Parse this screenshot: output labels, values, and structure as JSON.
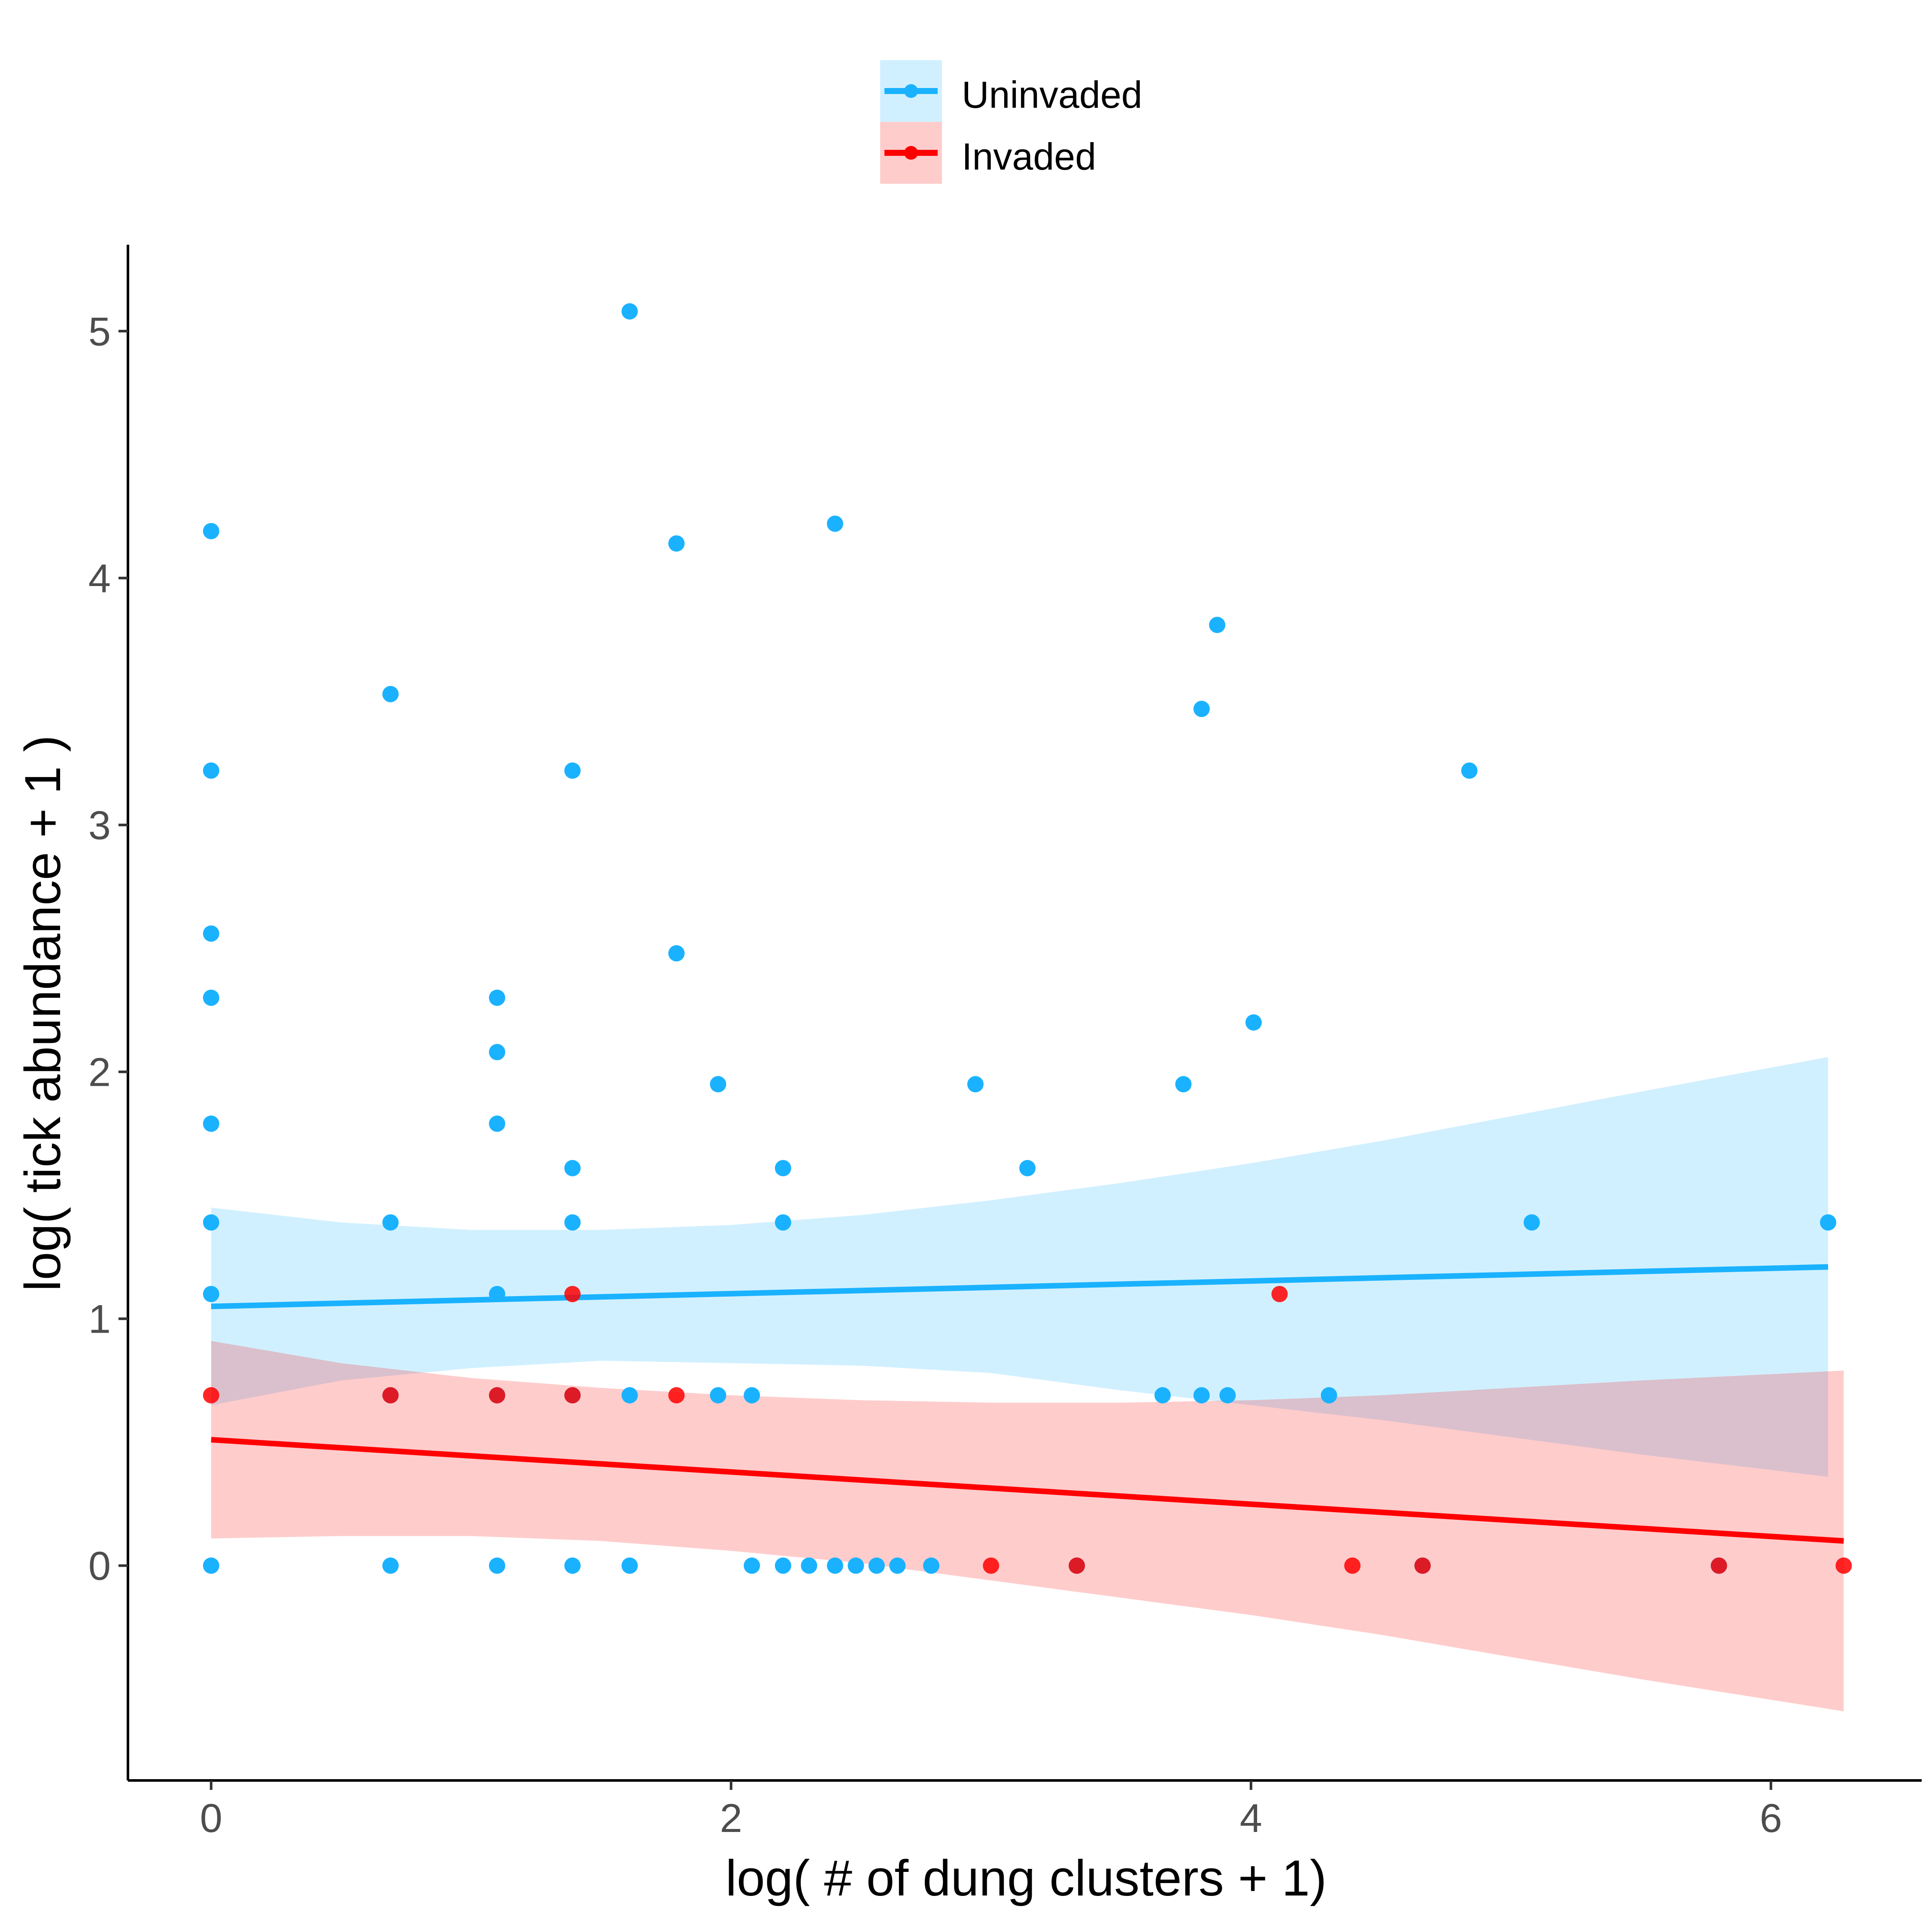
{
  "chart_data": {
    "type": "scatter",
    "xlabel": "log( # of dung clusters + 1)",
    "ylabel": "log( tick abundance + 1 )",
    "xlim": [
      -0.32,
      6.58
    ],
    "ylim": [
      -0.87,
      5.35
    ],
    "xticks": [
      "0",
      "2",
      "4",
      "6"
    ],
    "yticks": [
      "0",
      "1",
      "2",
      "3",
      "4",
      "5"
    ],
    "legend_position": "top",
    "grid": false,
    "series": [
      {
        "name": "Uninvaded",
        "color": "#1AB2FF",
        "points": [
          [
            0,
            4.19
          ],
          [
            0,
            3.22
          ],
          [
            0,
            2.56
          ],
          [
            0,
            2.3
          ],
          [
            0,
            1.79
          ],
          [
            0,
            1.39
          ],
          [
            0,
            1.1
          ],
          [
            0,
            0
          ],
          [
            0.69,
            3.53
          ],
          [
            0.69,
            1.39
          ],
          [
            0.69,
            0.69
          ],
          [
            0.69,
            0
          ],
          [
            1.1,
            2.3
          ],
          [
            1.1,
            2.08
          ],
          [
            1.1,
            1.79
          ],
          [
            1.1,
            1.1
          ],
          [
            1.1,
            0.69
          ],
          [
            1.1,
            0
          ],
          [
            1.39,
            3.22
          ],
          [
            1.39,
            1.61
          ],
          [
            1.39,
            1.39
          ],
          [
            1.39,
            0.69
          ],
          [
            1.39,
            0
          ],
          [
            1.61,
            5.08
          ],
          [
            1.61,
            0.69
          ],
          [
            1.61,
            0
          ],
          [
            1.79,
            4.14
          ],
          [
            1.79,
            2.48
          ],
          [
            1.95,
            1.95
          ],
          [
            1.95,
            0.69
          ],
          [
            2.08,
            0.69
          ],
          [
            2.08,
            0
          ],
          [
            2.2,
            1.61
          ],
          [
            2.2,
            1.39
          ],
          [
            2.2,
            0
          ],
          [
            2.3,
            0
          ],
          [
            2.4,
            4.22
          ],
          [
            2.4,
            0
          ],
          [
            2.48,
            0
          ],
          [
            2.56,
            0
          ],
          [
            2.64,
            0
          ],
          [
            2.77,
            0
          ],
          [
            2.94,
            1.95
          ],
          [
            3.14,
            1.61
          ],
          [
            3.33,
            0
          ],
          [
            3.66,
            0.69
          ],
          [
            3.74,
            1.95
          ],
          [
            3.81,
            3.47
          ],
          [
            3.81,
            0.69
          ],
          [
            3.87,
            3.81
          ],
          [
            3.91,
            0.69
          ],
          [
            4.01,
            2.2
          ],
          [
            4.3,
            0.69
          ],
          [
            4.66,
            0
          ],
          [
            4.84,
            3.22
          ],
          [
            5.08,
            1.39
          ],
          [
            5.8,
            0
          ],
          [
            6.22,
            1.39
          ]
        ],
        "fit": {
          "x": [
            0,
            6.22
          ],
          "y": [
            1.05,
            1.21
          ]
        },
        "band": {
          "x": [
            0,
            0.5,
            1.0,
            1.5,
            2.0,
            2.5,
            3.0,
            3.5,
            4.0,
            4.5,
            5.0,
            5.5,
            6.22
          ],
          "upper": [
            1.45,
            1.39,
            1.36,
            1.36,
            1.38,
            1.42,
            1.48,
            1.55,
            1.63,
            1.72,
            1.82,
            1.92,
            2.06
          ],
          "lower": [
            0.65,
            0.75,
            0.8,
            0.83,
            0.82,
            0.81,
            0.78,
            0.71,
            0.65,
            0.59,
            0.52,
            0.45,
            0.36
          ]
        }
      },
      {
        "name": "Invaded",
        "color": "#FF0000",
        "points": [
          [
            0,
            0.69
          ],
          [
            0.69,
            0.69
          ],
          [
            1.1,
            0.69
          ],
          [
            1.39,
            1.1
          ],
          [
            1.39,
            0.69
          ],
          [
            1.79,
            0.69
          ],
          [
            3.0,
            0
          ],
          [
            3.33,
            0
          ],
          [
            4.11,
            1.1
          ],
          [
            4.39,
            0
          ],
          [
            4.66,
            0
          ],
          [
            5.8,
            0
          ],
          [
            6.28,
            0
          ]
        ],
        "fit": {
          "x": [
            0,
            6.28
          ],
          "y": [
            0.51,
            0.1
          ]
        },
        "band": {
          "x": [
            0,
            0.5,
            1.0,
            1.5,
            2.0,
            2.5,
            3.0,
            3.5,
            4.0,
            4.5,
            5.0,
            5.5,
            6.28
          ],
          "upper": [
            0.91,
            0.82,
            0.76,
            0.72,
            0.69,
            0.67,
            0.66,
            0.66,
            0.67,
            0.69,
            0.72,
            0.75,
            0.79
          ],
          "lower": [
            0.11,
            0.12,
            0.12,
            0.1,
            0.06,
            0.01,
            -0.06,
            -0.13,
            -0.2,
            -0.28,
            -0.37,
            -0.46,
            -0.59
          ]
        }
      }
    ]
  }
}
